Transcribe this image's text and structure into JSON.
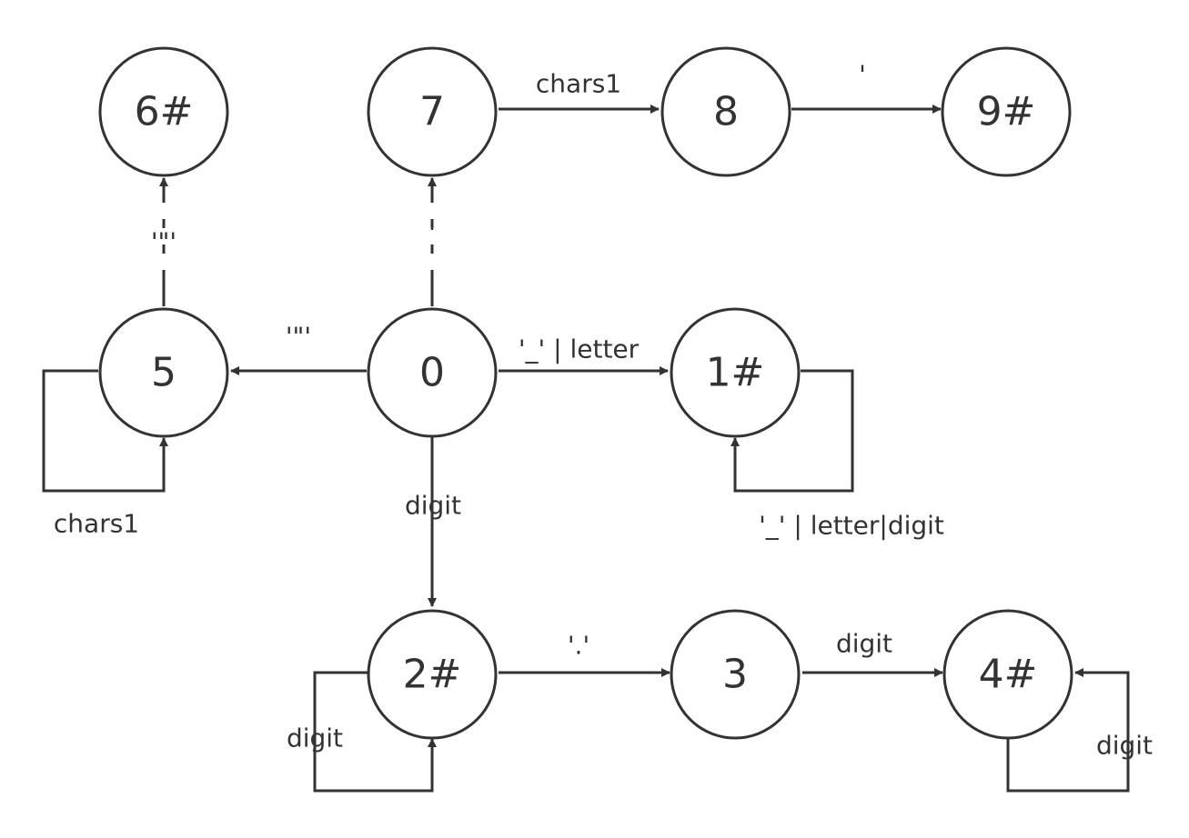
{
  "states": [
    {
      "id": "s6",
      "label": "6#"
    },
    {
      "id": "s7",
      "label": "7"
    },
    {
      "id": "s8",
      "label": "8"
    },
    {
      "id": "s9",
      "label": "9#"
    },
    {
      "id": "s5",
      "label": "5"
    },
    {
      "id": "s0",
      "label": "0"
    },
    {
      "id": "s1",
      "label": "1#"
    },
    {
      "id": "s2",
      "label": "2#"
    },
    {
      "id": "s3",
      "label": "3"
    },
    {
      "id": "s4",
      "label": "4#"
    }
  ],
  "transitions": {
    "t7_8": "chars1",
    "t8_9": "'",
    "t5_6": "'\"'",
    "t0_7": "'",
    "t0_5": "'\"'",
    "t0_1": "'_' | letter",
    "t1_1": "'_' | letter|digit",
    "t5_5": "chars1",
    "t0_2": "digit",
    "t2_3": "'.'",
    "t3_4": "digit",
    "t2_2": "digit",
    "t4_4": "digit"
  },
  "colors": {
    "stroke": "#333333",
    "background": "#ffffff"
  }
}
